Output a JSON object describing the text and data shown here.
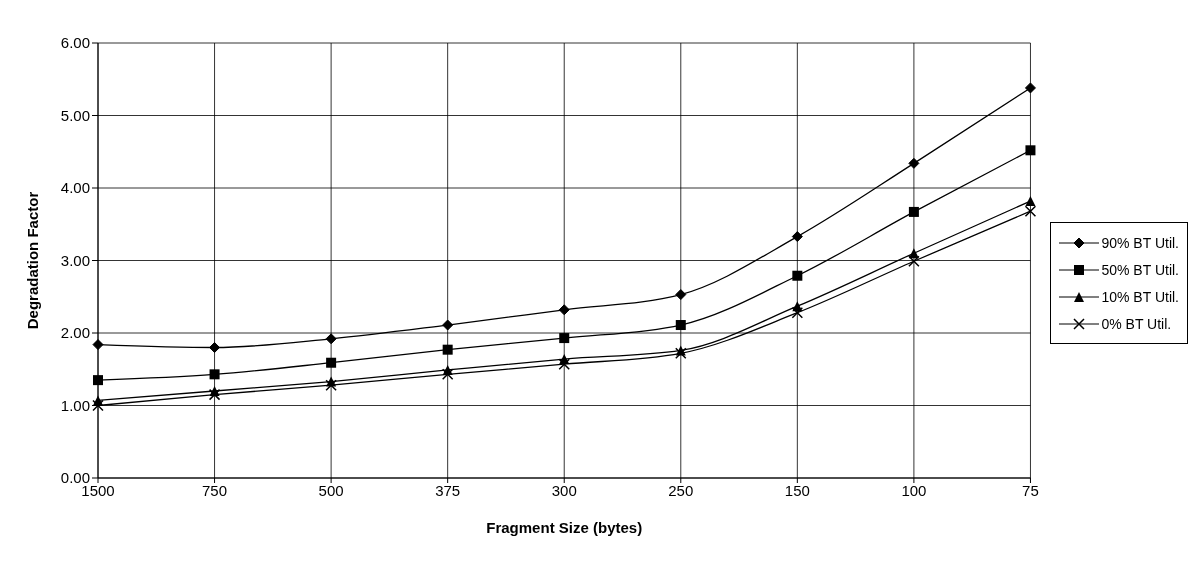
{
  "chart_data": {
    "type": "line",
    "xlabel": "Fragment Size (bytes)",
    "ylabel": "Degradation Factor",
    "categories": [
      "1500",
      "750",
      "500",
      "375",
      "300",
      "250",
      "150",
      "100",
      "75"
    ],
    "ylim": [
      0,
      6
    ],
    "yticks": [
      {
        "value": 0,
        "label": "0.00"
      },
      {
        "value": 1,
        "label": "1.00"
      },
      {
        "value": 2,
        "label": "2.00"
      },
      {
        "value": 3,
        "label": "3.00"
      },
      {
        "value": 4,
        "label": "4.00"
      },
      {
        "value": 5,
        "label": "5.00"
      },
      {
        "value": 6,
        "label": "6.00"
      }
    ],
    "grid": true,
    "legend": "right",
    "line_style": "solid",
    "series": [
      {
        "name": "90% BT Util.",
        "color": "#000000",
        "marker": "diamond",
        "values": [
          1.84,
          1.8,
          1.92,
          2.11,
          2.32,
          2.53,
          3.33,
          4.34,
          5.38
        ]
      },
      {
        "name": "50% BT Util.",
        "color": "#000000",
        "marker": "square",
        "values": [
          1.35,
          1.43,
          1.59,
          1.77,
          1.93,
          2.11,
          2.79,
          3.67,
          4.52
        ]
      },
      {
        "name": "10% BT Util.",
        "color": "#000000",
        "marker": "triangle",
        "values": [
          1.07,
          1.2,
          1.33,
          1.49,
          1.64,
          1.76,
          2.37,
          3.1,
          3.82
        ]
      },
      {
        "name": "0% BT Util.",
        "color": "#000000",
        "marker": "cross",
        "values": [
          1.0,
          1.15,
          1.28,
          1.43,
          1.57,
          1.72,
          2.28,
          2.99,
          3.68
        ]
      }
    ]
  }
}
